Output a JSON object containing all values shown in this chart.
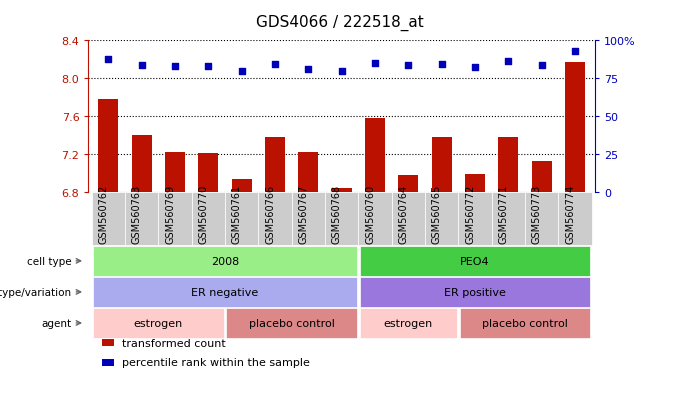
{
  "title": "GDS4066 / 222518_at",
  "samples": [
    "GSM560762",
    "GSM560763",
    "GSM560769",
    "GSM560770",
    "GSM560761",
    "GSM560766",
    "GSM560767",
    "GSM560768",
    "GSM560760",
    "GSM560764",
    "GSM560765",
    "GSM560772",
    "GSM560771",
    "GSM560773",
    "GSM560774"
  ],
  "bar_values": [
    7.78,
    7.4,
    7.22,
    7.21,
    6.93,
    7.38,
    7.22,
    6.84,
    7.58,
    6.97,
    7.38,
    6.99,
    7.38,
    7.12,
    8.17
  ],
  "dot_values": [
    8.2,
    8.14,
    8.13,
    8.13,
    8.08,
    8.15,
    8.1,
    8.08,
    8.16,
    8.14,
    8.15,
    8.12,
    8.18,
    8.14,
    8.29
  ],
  "ylim_left": [
    6.8,
    8.4
  ],
  "left_ticks": [
    6.8,
    7.2,
    7.6,
    8.0,
    8.4
  ],
  "right_ticks": [
    0,
    25,
    50,
    75,
    100
  ],
  "right_tick_labels": [
    "0",
    "25",
    "50",
    "75",
    "100%"
  ],
  "bar_color": "#bb1100",
  "dot_color": "#0000bb",
  "annotation_rows": [
    {
      "label": "cell type",
      "segments": [
        {
          "text": "2008",
          "start": 0,
          "end": 8,
          "color": "#99ee88"
        },
        {
          "text": "PEO4",
          "start": 8,
          "end": 15,
          "color": "#44cc44"
        }
      ]
    },
    {
      "label": "genotype/variation",
      "segments": [
        {
          "text": "ER negative",
          "start": 0,
          "end": 8,
          "color": "#aaaaee"
        },
        {
          "text": "ER positive",
          "start": 8,
          "end": 15,
          "color": "#9977dd"
        }
      ]
    },
    {
      "label": "agent",
      "segments": [
        {
          "text": "estrogen",
          "start": 0,
          "end": 4,
          "color": "#ffcccc"
        },
        {
          "text": "placebo control",
          "start": 4,
          "end": 8,
          "color": "#dd8888"
        },
        {
          "text": "estrogen",
          "start": 8,
          "end": 11,
          "color": "#ffcccc"
        },
        {
          "text": "placebo control",
          "start": 11,
          "end": 15,
          "color": "#dd8888"
        }
      ]
    }
  ],
  "legend_items": [
    {
      "label": "transformed count",
      "color": "#bb1100"
    },
    {
      "label": "percentile rank within the sample",
      "color": "#0000bb"
    }
  ],
  "tick_bg_color": "#cccccc",
  "bg_color": "#ffffff"
}
